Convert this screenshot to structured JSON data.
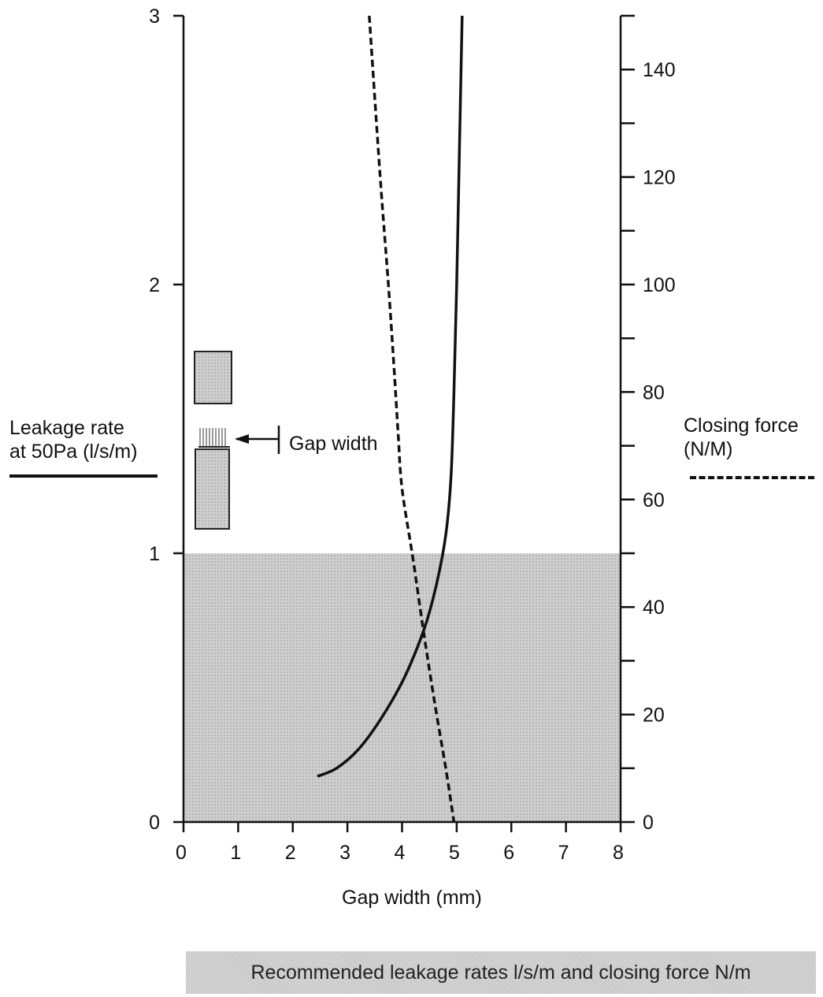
{
  "chart_data": {
    "type": "line",
    "title": "",
    "xlabel": "Gap width (mm)",
    "xlim": [
      0,
      8
    ],
    "x_ticks": [
      0,
      1,
      2,
      3,
      4,
      5,
      6,
      7,
      8
    ],
    "left_axis": {
      "label_line1": "Leakage rate",
      "label_line2": "at 50Pa (l/s/m)",
      "ylim": [
        0,
        3
      ],
      "ticks": [
        0,
        1,
        2,
        3
      ]
    },
    "right_axis": {
      "label_line1": "Closing force",
      "label_line2": "(N/M)",
      "ylim": [
        0,
        150
      ],
      "ticks": [
        0,
        20,
        40,
        60,
        80,
        100,
        120,
        140
      ]
    },
    "series": [
      {
        "style": "solid",
        "axis": "left",
        "x": [
          2.45,
          2.8,
          3.2,
          3.6,
          4.0,
          4.3,
          4.5,
          4.7,
          4.82,
          4.9,
          4.95,
          5.0,
          5.05,
          5.1
        ],
        "y": [
          0.17,
          0.2,
          0.27,
          0.38,
          0.52,
          0.66,
          0.78,
          0.95,
          1.1,
          1.3,
          1.6,
          2.0,
          2.5,
          3.0
        ]
      },
      {
        "style": "dashed",
        "axis": "right",
        "x": [
          3.4,
          3.6,
          3.75,
          3.85,
          3.93,
          4.0,
          4.2,
          4.4,
          4.6,
          4.8,
          4.95
        ],
        "y": [
          150,
          120,
          100,
          85,
          72,
          62,
          49,
          35,
          22,
          10,
          0
        ]
      }
    ],
    "shaded_region": {
      "ymin": 0,
      "ymax": 1,
      "axis": "left"
    },
    "grid": false,
    "annotation": "Gap width",
    "footer": "Recommended leakage rates l/s/m and closing force N/m"
  }
}
